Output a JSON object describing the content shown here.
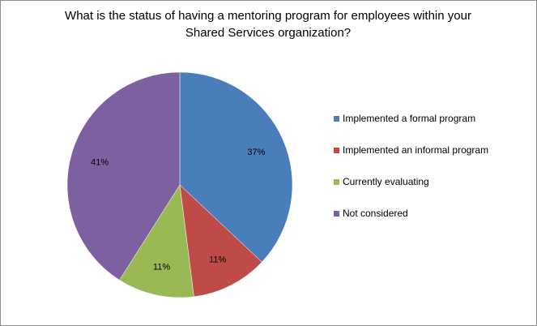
{
  "title_line1": "What is the status of having a mentoring program for employees within your",
  "title_line2": "Shared Services organization?",
  "chart_data": {
    "type": "pie",
    "categories": [
      "Implemented a formal program",
      "Implemented an informal program",
      "Currently evaluating",
      "Not considered"
    ],
    "values": [
      37,
      11,
      11,
      41
    ],
    "labels": [
      "37%",
      "11%",
      "11%",
      "41%"
    ],
    "colors": [
      "#4a7ebb",
      "#be4b48",
      "#98b954",
      "#7d60a0"
    ],
    "legend_position": "right",
    "start_angle": "12 o'clock",
    "direction": "clockwise"
  }
}
